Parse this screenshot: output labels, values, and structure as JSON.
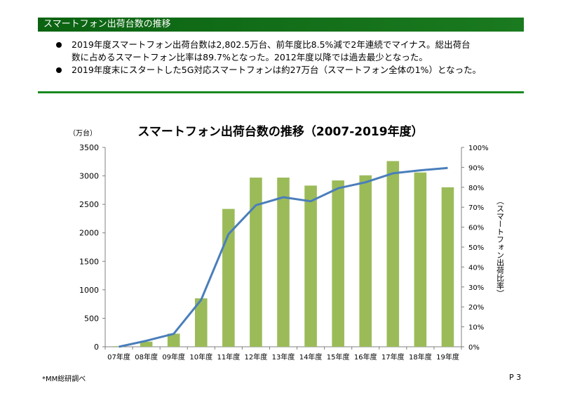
{
  "header": {
    "title": "スマートフォン出荷台数の推移"
  },
  "bullets": [
    {
      "line1": "2019年度スマートフォン出荷台数は2,802.5万台、前年度比8.5%減で2年連続でマイナス。総出荷台",
      "line2": "数に占めるスマートフォン比率は89.7%となった。2012年度以降では過去最少となった。"
    },
    {
      "line1": "2019年度末にスタートした5G対応スマートフォンは約27万台（スマートフォン全体の1%）となった。",
      "line2": ""
    }
  ],
  "chart_data": {
    "type": "bar",
    "title": "スマートフォン出荷台数の推移（2007-2019年度）",
    "categories": [
      "07年度",
      "08年度",
      "09年度",
      "10年度",
      "11年度",
      "12年度",
      "13年度",
      "14年度",
      "15年度",
      "16年度",
      "17年度",
      "18年度",
      "19年度"
    ],
    "series": [
      {
        "kind": "bar",
        "axis": "left",
        "color": "#9bbb59",
        "values": [
          10,
          90,
          230,
          850,
          2420,
          2970,
          2970,
          2830,
          2920,
          3010,
          3260,
          3060,
          2800
        ]
      },
      {
        "kind": "line",
        "axis": "right",
        "color": "#4a7ebb",
        "values": [
          0,
          3,
          6.5,
          23.5,
          56.5,
          71,
          75,
          73,
          79.5,
          82.5,
          87,
          88.5,
          89.7
        ]
      }
    ],
    "ylabel_left": "（万台）",
    "ylabel_right": "（スマートフォン出荷比率）",
    "ylim_left": [
      0,
      3500
    ],
    "yticks_left": [
      "0",
      "500",
      "1000",
      "1500",
      "2000",
      "2500",
      "3000",
      "3500"
    ],
    "ylim_right": [
      0,
      100
    ],
    "yticks_right": [
      "0%",
      "10%",
      "20%",
      "30%",
      "40%",
      "50%",
      "60%",
      "70%",
      "80%",
      "90%",
      "100%"
    ],
    "grid": false,
    "legend": "none"
  },
  "footer": {
    "note": "*MM総研調べ",
    "page": "P 3"
  }
}
